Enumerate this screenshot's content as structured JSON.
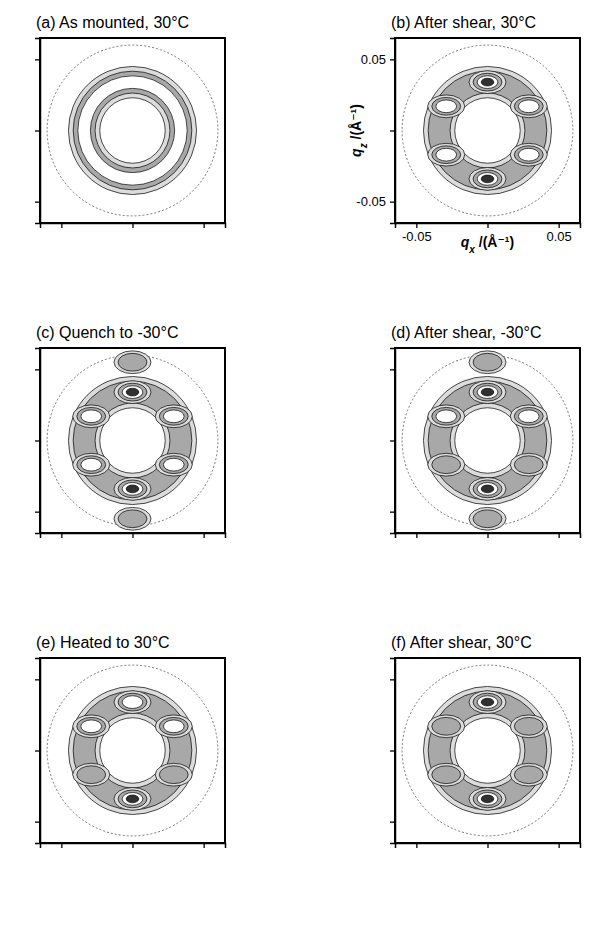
{
  "chart_data": [
    {
      "type": "contour",
      "title": "(a) As mounted, 30°C",
      "xlim": [
        -0.065,
        0.065
      ],
      "ylim": [
        -0.065,
        0.065
      ],
      "xticks": [
        -0.05,
        0,
        0.05
      ],
      "yticks": [
        -0.05,
        0,
        0.05
      ],
      "tick_labels": false,
      "ring": {
        "inner": 0.023,
        "outer": 0.045,
        "halo": 0.06,
        "intensity": 3
      },
      "spots": {
        "qx": [],
        "qz": [],
        "intensity": []
      }
    },
    {
      "type": "contour",
      "title": "(b) After shear, 30°C",
      "xlabel": "qx /(Å⁻¹)",
      "ylabel": "qz /(Å⁻¹)",
      "xlim": [
        -0.065,
        0.065
      ],
      "ylim": [
        -0.065,
        0.065
      ],
      "xticks": [
        -0.05,
        {
          "value": 0,
          "label": null
        },
        0.05
      ],
      "yticks": [
        -0.05,
        {
          "value": 0,
          "label": null
        },
        0.05
      ],
      "ring": {
        "inner": 0.023,
        "outer": 0.045,
        "halo": 0.06,
        "intensity": 2
      },
      "spots": {
        "qx": [
          0,
          0,
          0.029,
          -0.029,
          0.029,
          -0.029
        ],
        "qz": [
          0.034,
          -0.034,
          0.017,
          0.017,
          -0.017,
          -0.017
        ],
        "intensity": [
          4,
          4,
          3,
          3,
          3,
          3
        ]
      }
    },
    {
      "type": "contour",
      "title": "(c) Quench to -30°C",
      "xlim": [
        -0.065,
        0.065
      ],
      "ylim": [
        -0.065,
        0.065
      ],
      "xticks": [
        -0.05,
        0,
        0.05
      ],
      "yticks": [
        -0.05,
        0,
        0.05
      ],
      "tick_labels": false,
      "ring": {
        "inner": 0.023,
        "outer": 0.045,
        "halo": 0.06,
        "intensity": 2
      },
      "spots": {
        "qx": [
          0,
          0,
          0.029,
          -0.029,
          0.029,
          -0.029,
          0,
          0
        ],
        "qz": [
          0.034,
          -0.034,
          0.017,
          0.017,
          -0.017,
          -0.017,
          0.055,
          -0.055
        ],
        "intensity": [
          4,
          4,
          3,
          3,
          3,
          3,
          2,
          2
        ]
      }
    },
    {
      "type": "contour",
      "title": "(d) After shear, -30°C",
      "xlim": [
        -0.065,
        0.065
      ],
      "ylim": [
        -0.065,
        0.065
      ],
      "xticks": [
        -0.05,
        0,
        0.05
      ],
      "yticks": [
        -0.05,
        0,
        0.05
      ],
      "tick_labels": false,
      "ring": {
        "inner": 0.023,
        "outer": 0.045,
        "halo": 0.06,
        "intensity": 2
      },
      "spots": {
        "qx": [
          0,
          0,
          0.029,
          -0.029,
          0.029,
          -0.029,
          0,
          0
        ],
        "qz": [
          0.034,
          -0.034,
          0.017,
          0.017,
          -0.017,
          -0.017,
          0.055,
          -0.055
        ],
        "intensity": [
          4,
          4,
          3,
          3,
          2,
          2,
          2,
          2
        ]
      }
    },
    {
      "type": "contour",
      "title": "(e) Heated to 30°C",
      "xlim": [
        -0.065,
        0.065
      ],
      "ylim": [
        -0.065,
        0.065
      ],
      "xticks": [
        -0.05,
        0,
        0.05
      ],
      "yticks": [
        -0.05,
        0,
        0.05
      ],
      "tick_labels": false,
      "ring": {
        "inner": 0.023,
        "outer": 0.045,
        "halo": 0.06,
        "intensity": 2
      },
      "spots": {
        "qx": [
          0,
          0,
          0.029,
          -0.029,
          0.029,
          -0.029
        ],
        "qz": [
          0.034,
          -0.034,
          0.017,
          0.017,
          -0.017,
          -0.017
        ],
        "intensity": [
          3,
          4,
          3,
          3,
          2,
          2
        ]
      }
    },
    {
      "type": "contour",
      "title": "(f) After shear, 30°C",
      "xlim": [
        -0.065,
        0.065
      ],
      "ylim": [
        -0.065,
        0.065
      ],
      "xticks": [
        -0.05,
        0,
        0.05
      ],
      "yticks": [
        -0.05,
        0,
        0.05
      ],
      "tick_labels": false,
      "ring": {
        "inner": 0.023,
        "outer": 0.045,
        "halo": 0.06,
        "intensity": 2
      },
      "spots": {
        "qx": [
          0,
          0,
          0.029,
          -0.029,
          0.029,
          -0.029
        ],
        "qz": [
          0.034,
          -0.034,
          0.017,
          0.017,
          -0.017,
          -0.017
        ],
        "intensity": [
          4,
          4,
          2,
          2,
          2,
          2
        ]
      }
    }
  ]
}
